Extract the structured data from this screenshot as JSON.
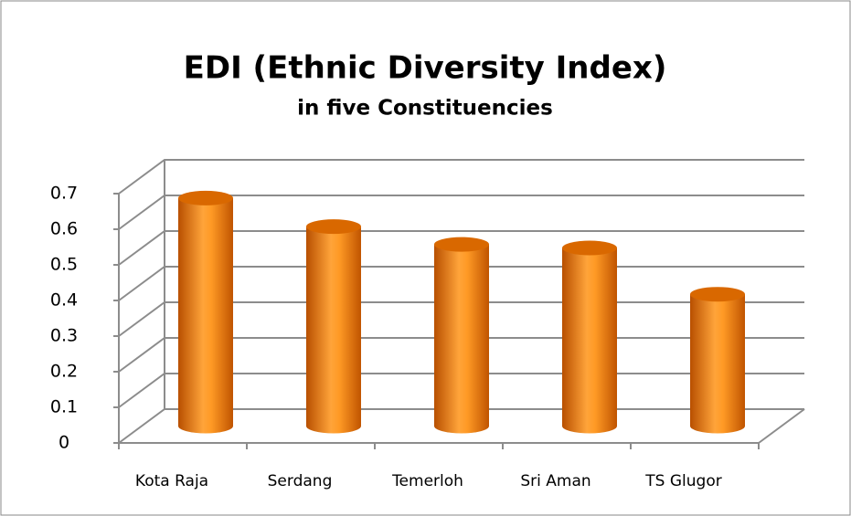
{
  "chart_data": {
    "type": "bar3d",
    "title": "EDI (Ethnic Diversity Index)",
    "subtitle": "in five Constituencies",
    "categories": [
      "Kota Raja",
      "Serdang",
      "Temerloh",
      "Sri Aman",
      "TS Glugor"
    ],
    "values": [
      0.64,
      0.56,
      0.51,
      0.5,
      0.37
    ],
    "color": "#f58a0b",
    "ylim": [
      0,
      0.7
    ],
    "yticks": [
      0,
      0.1,
      0.2,
      0.3,
      0.4,
      0.5,
      0.6,
      0.7
    ],
    "grid": true
  }
}
